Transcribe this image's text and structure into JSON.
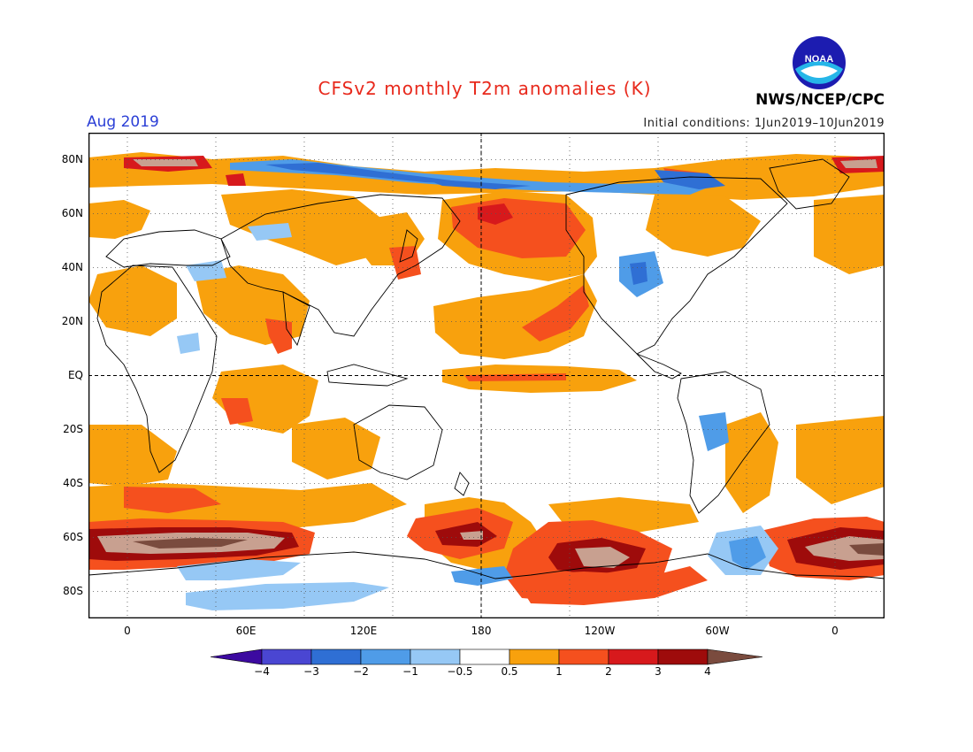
{
  "header": {
    "title": "CFSv2 monthly T2m anomalies (K)",
    "month": "Aug 2019",
    "initial_conditions": "Initial conditions: 1Jun2019–10Jun2019",
    "organization": "NWS/NCEP/CPC",
    "logo_text": "NOAA"
  },
  "map": {
    "lat_labels": [
      "80N",
      "60N",
      "40N",
      "20N",
      "EQ",
      "20S",
      "40S",
      "60S",
      "80S"
    ],
    "lon_labels": [
      "0",
      "60E",
      "120E",
      "180",
      "120W",
      "60W",
      "0"
    ],
    "colors": {
      "neg4": "#3c0aa0",
      "neg3": "#4a46d2",
      "neg2": "#2f6fd4",
      "neg1": "#4f9ce8",
      "neg05": "#96c8f5",
      "neutral": "#ffffff",
      "pos05": "#f8a10d",
      "pos1": "#f5501e",
      "pos2": "#d7191c",
      "pos3": "#9e0b0b",
      "pos4": "#c8a090",
      "pos5": "#7a4b3e"
    }
  },
  "colorbar": {
    "labels": [
      "−4",
      "−3",
      "−2",
      "−1",
      "−0.5",
      "0.5",
      "1",
      "2",
      "3",
      "4"
    ],
    "colors": [
      "#3c0aa0",
      "#4a46d2",
      "#2f6fd4",
      "#4f9ce8",
      "#96c8f5",
      "#ffffff",
      "#f8a10d",
      "#f5501e",
      "#d7191c",
      "#9e0b0b",
      "#c8a090",
      "#7a4b3e"
    ]
  }
}
